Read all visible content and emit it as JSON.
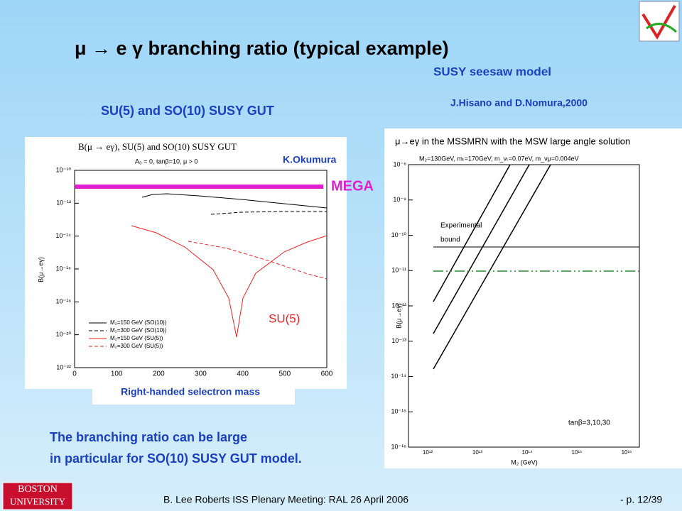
{
  "header": {
    "title": "μ → e γ branching ratio (typical example)",
    "left_subtitle": "SU(5) and SO(10) SUSY GUT",
    "right_subtitle": "SUSY seesaw model",
    "right_citation": "J.Hisano and D.Nomura,2000"
  },
  "left_plot": {
    "title": "B(μ → eγ), SU(5) and SO(10) SUSY GUT",
    "params": "A₀ = 0, tanβ=10, μ > 0",
    "y_label": "B(μ→eγ)",
    "y_ticks": [
      "10⁻¹⁰",
      "10⁻¹²",
      "10⁻¹⁴",
      "10⁻¹⁶",
      "10⁻¹⁸",
      "10⁻²⁰",
      "10⁻²²"
    ],
    "x_ticks": [
      "0",
      "100",
      "200",
      "300",
      "400",
      "500",
      "600"
    ],
    "x_label": "Right-handed selectron mass",
    "legend": [
      "M₂=150 GeV (SO(10))",
      "M₂=300 GeV (SO(10))",
      "M₂=150 GeV (SU(5))",
      "M₂=300 GeV (SU(5))"
    ],
    "author": "K.Okumura",
    "bound_label": "MEGA",
    "curve_label": "SU(5)"
  },
  "right_plot": {
    "title": "μ→eγ in the MSSMRN with the MSW large angle solution",
    "params": "M₂=130GeV, mₜ=170GeV, m_νₜ=0.07eV, m_νμ=0.004eV",
    "y_label": "B(μ→eγ)",
    "y_ticks": [
      "10⁻⁸",
      "10⁻⁹",
      "10⁻¹⁰",
      "10⁻¹¹",
      "10⁻¹²",
      "10⁻¹³",
      "10⁻¹⁴",
      "10⁻¹⁵",
      "10⁻¹⁶"
    ],
    "x_ticks": [
      "10¹²",
      "10¹³",
      "10¹⁴",
      "10¹⁵",
      "10¹⁶"
    ],
    "x_label": "M₂ (GeV)",
    "bound_label_1": "Experimental",
    "bound_label_2": "bound",
    "tan_label": "tanβ=3,10,30"
  },
  "body": {
    "line_1": "The branching ratio can be large",
    "line_2": "in particular for SO(10) SUSY GUT model."
  },
  "footer": {
    "logo_1": "BOSTON",
    "logo_2": "UNIVERSITY",
    "credit": "B. Lee Roberts  ISS Plenary Meeting: RAL 26 April 2006",
    "page": "- p. 12/39"
  }
}
